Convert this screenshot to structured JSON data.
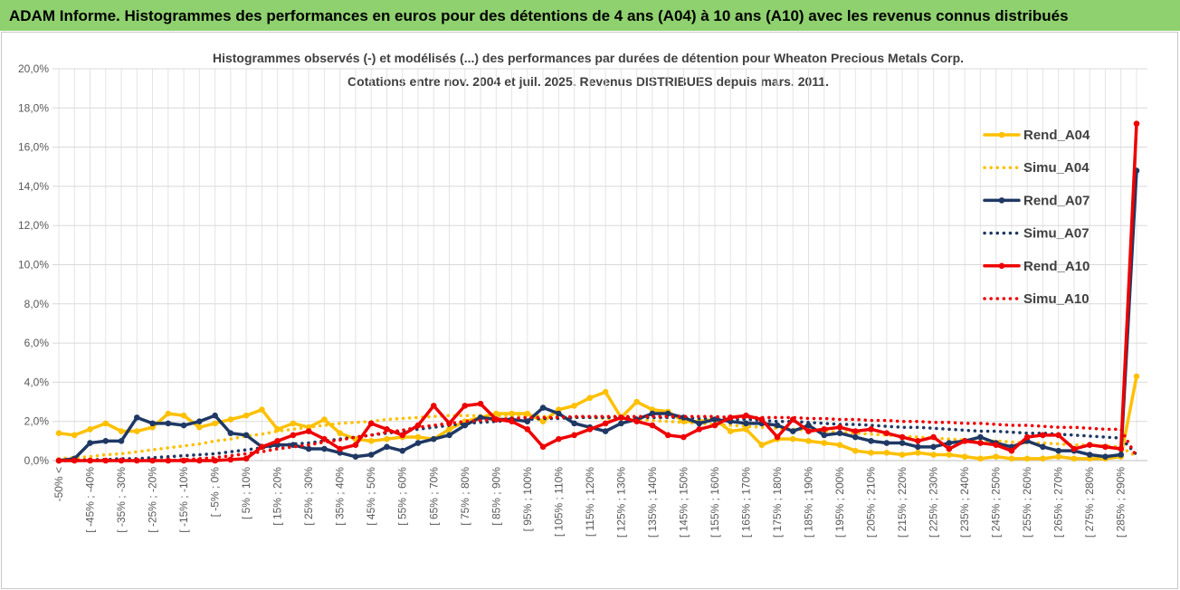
{
  "header": "ADAM Informe. Histogrammes des performances en euros pour des détentions de 4 ans (A04) à 10 ans (A10) avec les revenus connus distribués",
  "chart_data": {
    "type": "line",
    "title": "Histogrammes observés (-) et modélisés (...)  des performances par durées de détention pour Wheaton Precious Metals Corp.",
    "subtitle": "Cotations entre nov. 2004 et juil. 2025. Revenus DISTRIBUES depuis mars. 2011.",
    "categories": [
      "-50% <",
      null,
      "[ -45% ; -40%",
      null,
      "[ -35% ; -30%",
      null,
      "[ -25% ; -20%",
      null,
      "[ -15% ; -10%",
      null,
      "[ -5% ; 0%",
      null,
      "[ 5% ; 10%",
      null,
      "[ 15% ; 20%",
      null,
      "[ 25% ; 30%",
      null,
      "[ 35% ; 40%",
      null,
      "[ 45% ; 50%",
      null,
      "[ 55% ; 60%",
      null,
      "[ 65% ; 70%",
      null,
      "[ 75% ; 80%",
      null,
      "[ 85% ; 90%",
      null,
      "[ 95% ; 100%",
      null,
      "[ 105% ; 110%",
      null,
      "[ 115% ; 120%",
      null,
      "[ 125% ; 130%",
      null,
      "[ 135% ; 140%",
      null,
      "[ 145% ; 150%",
      null,
      "[ 155% ; 160%",
      null,
      "[ 165% ; 170%",
      null,
      "[ 175% ; 180%",
      null,
      "[ 185% ; 190%",
      null,
      "[ 195% ; 200%",
      null,
      "[ 205% ; 210%",
      null,
      "[ 215% ; 220%",
      null,
      "[ 225% ; 230%",
      null,
      "[ 235% ; 240%",
      null,
      "[ 245% ; 250%",
      null,
      "[ 255% ; 260%",
      null,
      "[ 265% ; 270%",
      null,
      "[ 275% ; 280%",
      null,
      "[ 285% ; 290%",
      null
    ],
    "series": [
      {
        "name": "Rend_A04",
        "color": "#ffc000",
        "style": "solid",
        "markers": true,
        "values": [
          1.4,
          1.3,
          1.6,
          1.9,
          1.5,
          1.5,
          1.7,
          2.4,
          2.3,
          1.7,
          1.9,
          2.1,
          2.3,
          2.6,
          1.6,
          1.9,
          1.7,
          2.1,
          1.4,
          1.1,
          1.0,
          1.1,
          1.2,
          1.2,
          1.1,
          1.6,
          2.0,
          2.2,
          2.4,
          2.4,
          2.4,
          2.0,
          2.6,
          2.8,
          3.2,
          3.5,
          2.2,
          3.0,
          2.6,
          2.5,
          2.0,
          2.0,
          2.1,
          1.5,
          1.6,
          0.8,
          1.1,
          1.1,
          1.0,
          0.9,
          0.8,
          0.5,
          0.4,
          0.4,
          0.3,
          0.4,
          0.3,
          0.3,
          0.2,
          0.1,
          0.2,
          0.1,
          0.1,
          0.1,
          0.2,
          0.1,
          0.1,
          0.1,
          0.2,
          4.3
        ]
      },
      {
        "name": "Simu_A04",
        "color": "#ffc000",
        "style": "dotted",
        "markers": false,
        "values": [
          0.1,
          0.15,
          0.2,
          0.3,
          0.35,
          0.45,
          0.55,
          0.65,
          0.75,
          0.85,
          1.0,
          1.1,
          1.25,
          1.35,
          1.5,
          1.6,
          1.7,
          1.8,
          1.9,
          1.95,
          2.0,
          2.1,
          2.15,
          2.2,
          2.25,
          2.3,
          2.3,
          2.3,
          2.3,
          2.3,
          2.3,
          2.25,
          2.25,
          2.2,
          2.2,
          2.15,
          2.1,
          2.1,
          2.05,
          2.0,
          1.95,
          1.9,
          1.85,
          1.8,
          1.75,
          1.7,
          1.65,
          1.6,
          1.55,
          1.5,
          1.45,
          1.4,
          1.35,
          1.3,
          1.25,
          1.2,
          1.15,
          1.1,
          1.05,
          1.0,
          1.0,
          0.95,
          0.9,
          0.9,
          0.85,
          0.8,
          0.8,
          0.75,
          0.7,
          0.2
        ]
      },
      {
        "name": "Rend_A07",
        "color": "#1f3864",
        "style": "solid",
        "markers": true,
        "values": [
          0,
          0.1,
          0.9,
          1.0,
          1.0,
          2.2,
          1.9,
          1.9,
          1.8,
          2.0,
          2.3,
          1.4,
          1.3,
          0.7,
          0.8,
          0.8,
          0.6,
          0.6,
          0.4,
          0.2,
          0.3,
          0.7,
          0.5,
          0.9,
          1.1,
          1.3,
          1.8,
          2.2,
          2.1,
          2.1,
          2.0,
          2.7,
          2.4,
          1.9,
          1.7,
          1.5,
          1.9,
          2.1,
          2.4,
          2.4,
          2.2,
          1.9,
          2.1,
          2.0,
          1.9,
          1.9,
          1.8,
          1.5,
          1.8,
          1.3,
          1.4,
          1.2,
          1.0,
          0.9,
          0.9,
          0.7,
          0.7,
          0.9,
          1.0,
          1.2,
          0.9,
          0.7,
          1.0,
          0.7,
          0.5,
          0.5,
          0.3,
          0.2,
          0.3,
          14.8
        ]
      },
      {
        "name": "Simu_A07",
        "color": "#1f3864",
        "style": "dotted",
        "markers": false,
        "values": [
          0,
          0,
          0.05,
          0.05,
          0.1,
          0.1,
          0.15,
          0.2,
          0.25,
          0.3,
          0.35,
          0.45,
          0.55,
          0.65,
          0.75,
          0.85,
          0.9,
          1.0,
          1.1,
          1.2,
          1.3,
          1.4,
          1.5,
          1.6,
          1.7,
          1.8,
          1.9,
          1.95,
          2.0,
          2.05,
          2.1,
          2.15,
          2.15,
          2.2,
          2.2,
          2.2,
          2.2,
          2.2,
          2.2,
          2.2,
          2.2,
          2.15,
          2.15,
          2.1,
          2.1,
          2.05,
          2.0,
          2.0,
          1.95,
          1.9,
          1.85,
          1.85,
          1.8,
          1.75,
          1.7,
          1.7,
          1.65,
          1.6,
          1.55,
          1.5,
          1.5,
          1.45,
          1.4,
          1.4,
          1.35,
          1.3,
          1.25,
          1.2,
          1.15,
          0.3
        ]
      },
      {
        "name": "Rend_A10",
        "color": "#ee0000",
        "style": "solid",
        "markers": true,
        "values": [
          0,
          0,
          0,
          0,
          0,
          0,
          0,
          0,
          0,
          0,
          0,
          0.05,
          0.1,
          0.7,
          1.0,
          1.3,
          1.5,
          1.1,
          0.6,
          0.8,
          1.9,
          1.6,
          1.3,
          1.8,
          2.8,
          1.9,
          2.8,
          2.9,
          2.1,
          2.0,
          1.6,
          0.7,
          1.1,
          1.3,
          1.6,
          1.9,
          2.2,
          2.0,
          1.8,
          1.3,
          1.2,
          1.6,
          1.8,
          2.2,
          2.3,
          2.1,
          1.2,
          2.1,
          1.5,
          1.6,
          1.7,
          1.5,
          1.6,
          1.4,
          1.2,
          1.0,
          1.2,
          0.6,
          1.0,
          0.9,
          0.8,
          0.5,
          1.2,
          1.3,
          1.3,
          0.6,
          0.8,
          0.7,
          0.6,
          17.2
        ]
      },
      {
        "name": "Simu_A10",
        "color": "#ee0000",
        "style": "dotted",
        "markers": false,
        "values": [
          0,
          0,
          0,
          0,
          0,
          0,
          0,
          0,
          0.05,
          0.1,
          0.15,
          0.25,
          0.35,
          0.45,
          0.6,
          0.7,
          0.8,
          0.95,
          1.05,
          1.2,
          1.3,
          1.45,
          1.55,
          1.7,
          1.8,
          1.9,
          2.0,
          2.05,
          2.1,
          2.15,
          2.2,
          2.2,
          2.2,
          2.25,
          2.25,
          2.25,
          2.25,
          2.25,
          2.25,
          2.25,
          2.25,
          2.25,
          2.25,
          2.2,
          2.2,
          2.2,
          2.2,
          2.2,
          2.15,
          2.15,
          2.1,
          2.1,
          2.05,
          2.05,
          2.0,
          2.0,
          1.95,
          1.95,
          1.9,
          1.9,
          1.85,
          1.8,
          1.8,
          1.75,
          1.7,
          1.7,
          1.65,
          1.6,
          1.6,
          0.2
        ]
      }
    ],
    "ylim": [
      0,
      20
    ],
    "yticks": [
      {
        "value": 0,
        "label": "0,0%"
      },
      {
        "value": 2,
        "label": "2,0%"
      },
      {
        "value": 4,
        "label": "4,0%"
      },
      {
        "value": 6,
        "label": "6,0%"
      },
      {
        "value": 8,
        "label": "8,0%"
      },
      {
        "value": 10,
        "label": "10,0%"
      },
      {
        "value": 12,
        "label": "12,0%"
      },
      {
        "value": 14,
        "label": "14,0%"
      },
      {
        "value": 16,
        "label": "16,0%"
      },
      {
        "value": 18,
        "label": "18,0%"
      },
      {
        "value": 20,
        "label": "20,0%"
      }
    ],
    "grid": true,
    "legend": "right"
  }
}
